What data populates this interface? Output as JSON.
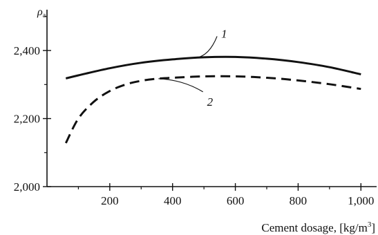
{
  "chart_data": {
    "type": "line",
    "title": "",
    "ylabel": "ρ",
    "ylabel_subscript": "a",
    "xlabel_main": "Cement dosage, [kg/m",
    "xlabel_sup": "3",
    "xlabel_end": "]",
    "xlim": [
      0,
      1050
    ],
    "ylim": [
      2000,
      2520
    ],
    "x_ticks": [
      200,
      400,
      600,
      800,
      1000
    ],
    "x_tick_labels": [
      "200",
      "400",
      "600",
      "800",
      "1,000"
    ],
    "x_minor_ticks": [
      100,
      300,
      500,
      700,
      900
    ],
    "y_ticks": [
      2000,
      2200,
      2400
    ],
    "y_tick_labels": [
      "2,000",
      "2,200",
      "2,400"
    ],
    "y_minor_ticks": [
      2100,
      2300,
      2500
    ],
    "grid": false,
    "series": [
      {
        "name": "1",
        "style": "solid",
        "x": [
          60,
          100,
          200,
          300,
          400,
          500,
          600,
          700,
          800,
          900,
          1000
        ],
        "y": [
          2318,
          2327,
          2348,
          2364,
          2374,
          2380,
          2381,
          2376,
          2366,
          2351,
          2330
        ]
      },
      {
        "name": "2",
        "style": "dashed",
        "x": [
          60,
          100,
          150,
          200,
          250,
          300,
          350,
          400,
          500,
          600,
          700,
          800,
          900,
          1000
        ],
        "y": [
          2128,
          2200,
          2250,
          2281,
          2300,
          2311,
          2317,
          2320,
          2324,
          2324,
          2320,
          2312,
          2301,
          2287
        ]
      }
    ],
    "callouts": [
      {
        "series": "1",
        "point_x": 475,
        "label_x": 555,
        "label_y": 2450
      },
      {
        "series": "2",
        "point_x": 355,
        "label_x": 510,
        "label_y": 2250
      }
    ]
  }
}
